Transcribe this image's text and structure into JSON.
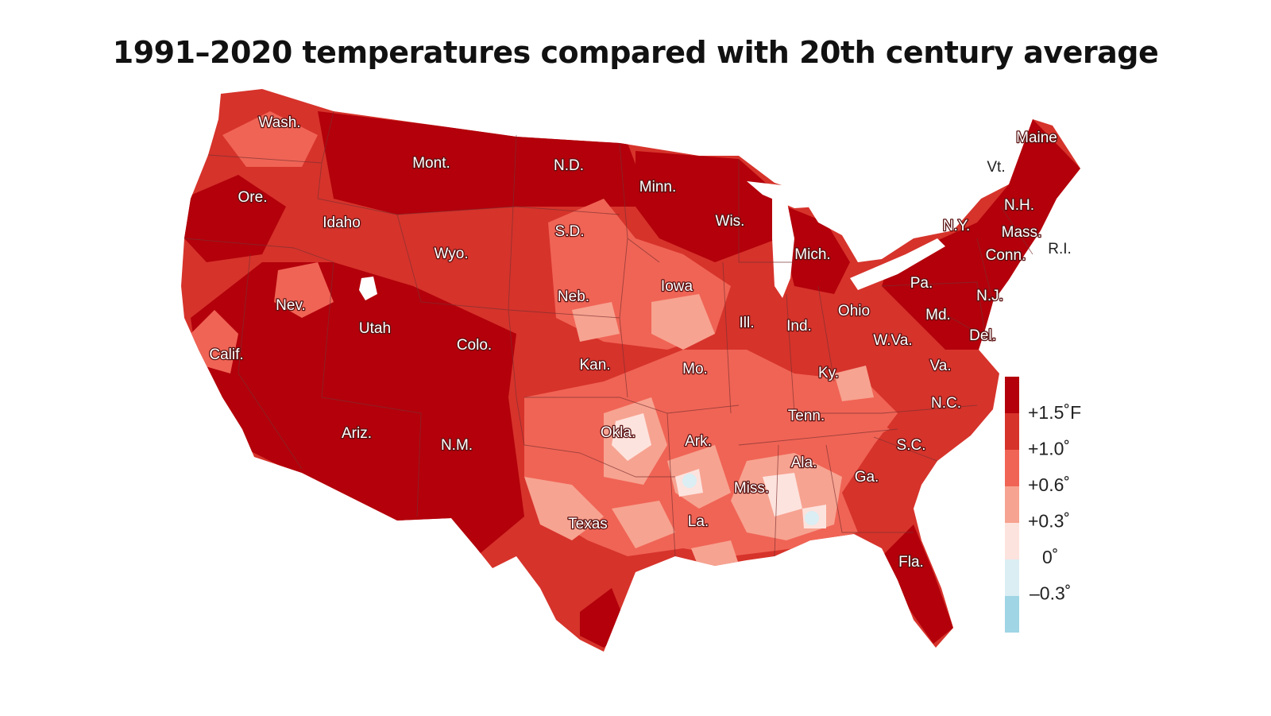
{
  "title": "1991–2020 temperatures compared with 20th century average",
  "colors": {
    "hot": "#b3000b",
    "warm": "#d6332b",
    "mid": "#f06455",
    "mild": "#f7a391",
    "neutral": "#fde3de",
    "cool": "#daeef3",
    "cold": "#9fd5e4",
    "border": "#7a3030"
  },
  "legend": {
    "labels": [
      "+1.5˚F",
      "+1.0˚",
      "+0.6˚",
      "+0.3˚",
      "0˚",
      "–0.3˚"
    ]
  },
  "states": [
    {
      "name": "Wash."
    },
    {
      "name": "Ore."
    },
    {
      "name": "Calif."
    },
    {
      "name": "Idaho"
    },
    {
      "name": "Nev."
    },
    {
      "name": "Mont."
    },
    {
      "name": "Wyo."
    },
    {
      "name": "Utah"
    },
    {
      "name": "Ariz."
    },
    {
      "name": "Colo."
    },
    {
      "name": "N.M."
    },
    {
      "name": "N.D."
    },
    {
      "name": "S.D."
    },
    {
      "name": "Neb."
    },
    {
      "name": "Kan."
    },
    {
      "name": "Okla."
    },
    {
      "name": "Texas"
    },
    {
      "name": "Minn."
    },
    {
      "name": "Iowa"
    },
    {
      "name": "Mo."
    },
    {
      "name": "Ark."
    },
    {
      "name": "La."
    },
    {
      "name": "Wis."
    },
    {
      "name": "Ill."
    },
    {
      "name": "Mich."
    },
    {
      "name": "Ind."
    },
    {
      "name": "Ohio"
    },
    {
      "name": "Ky."
    },
    {
      "name": "Tenn."
    },
    {
      "name": "Miss."
    },
    {
      "name": "Ala."
    },
    {
      "name": "Ga."
    },
    {
      "name": "Fla."
    },
    {
      "name": "S.C."
    },
    {
      "name": "N.C."
    },
    {
      "name": "Va."
    },
    {
      "name": "W.Va."
    },
    {
      "name": "Pa."
    },
    {
      "name": "Md."
    },
    {
      "name": "Del."
    },
    {
      "name": "N.J."
    },
    {
      "name": "N.Y."
    },
    {
      "name": "Conn."
    },
    {
      "name": "R.I."
    },
    {
      "name": "Mass."
    },
    {
      "name": "Vt."
    },
    {
      "name": "N.H."
    },
    {
      "name": "Maine"
    }
  ]
}
